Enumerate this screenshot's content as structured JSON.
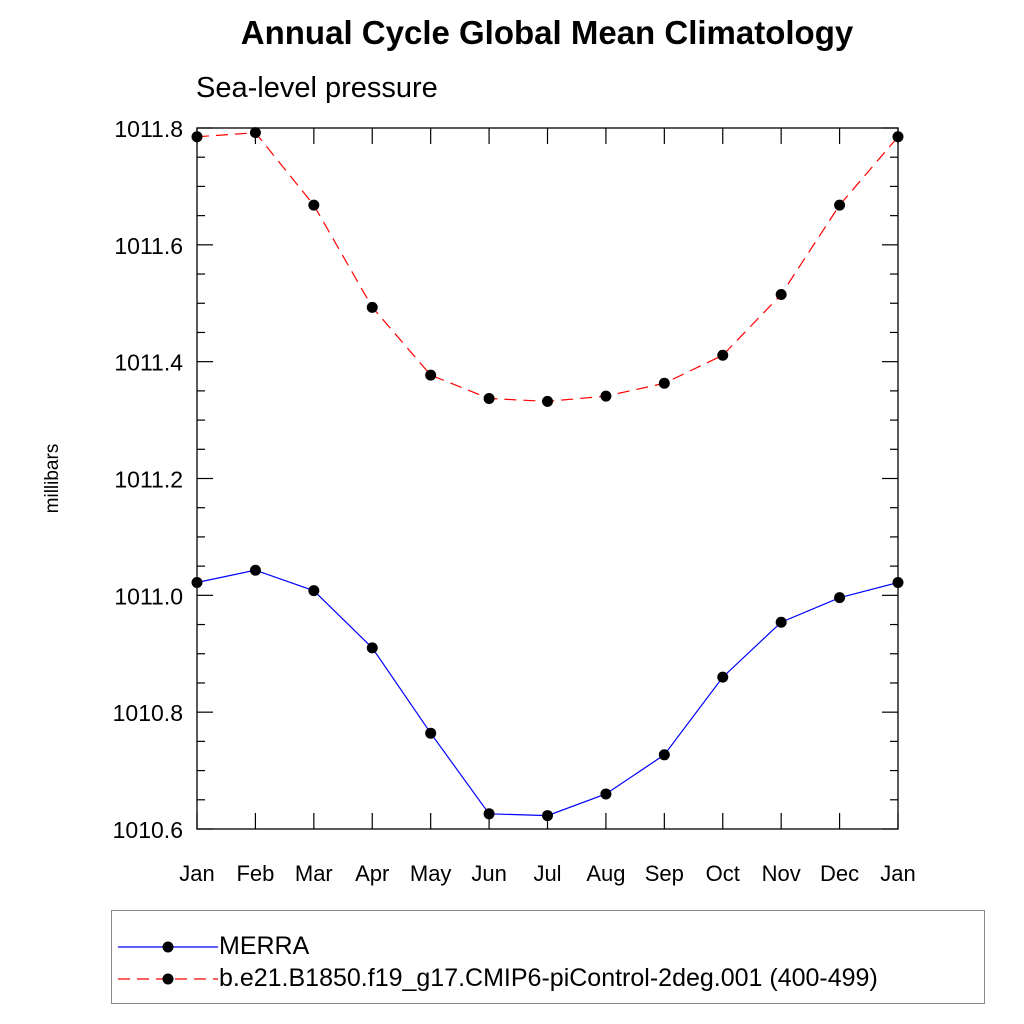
{
  "title": "Annual Cycle Global Mean Climatology",
  "chart_data": {
    "type": "line",
    "title": "Annual Cycle Global Mean Climatology",
    "subtitle": "Sea-level pressure",
    "xlabel": "",
    "ylabel": "millibars",
    "categories": [
      "Jan",
      "Feb",
      "Mar",
      "Apr",
      "May",
      "Jun",
      "Jul",
      "Aug",
      "Sep",
      "Oct",
      "Nov",
      "Dec",
      "Jan"
    ],
    "ylim": [
      1010.6,
      1011.8
    ],
    "yticks": [
      "1010.6",
      "1010.8",
      "1011.0",
      "1011.2",
      "1011.4",
      "1011.6",
      "1011.8"
    ],
    "grid": false,
    "legend_position": "bottom",
    "series": [
      {
        "name": "MERRA",
        "color": "#0000ff",
        "style": "solid",
        "values": [
          1011.022,
          1011.043,
          1011.008,
          1010.91,
          1010.764,
          1010.626,
          1010.623,
          1010.66,
          1010.727,
          1010.86,
          1010.954,
          1010.996,
          1011.022
        ]
      },
      {
        "name": "b.e21.B1850.f19_g17.CMIP6-piControl-2deg.001 (400-499)",
        "color": "#ff0000",
        "style": "dashed",
        "values": [
          1011.785,
          1011.792,
          1011.668,
          1011.493,
          1011.377,
          1011.337,
          1011.332,
          1011.341,
          1011.363,
          1011.411,
          1011.515,
          1011.668,
          1011.785
        ]
      }
    ]
  }
}
